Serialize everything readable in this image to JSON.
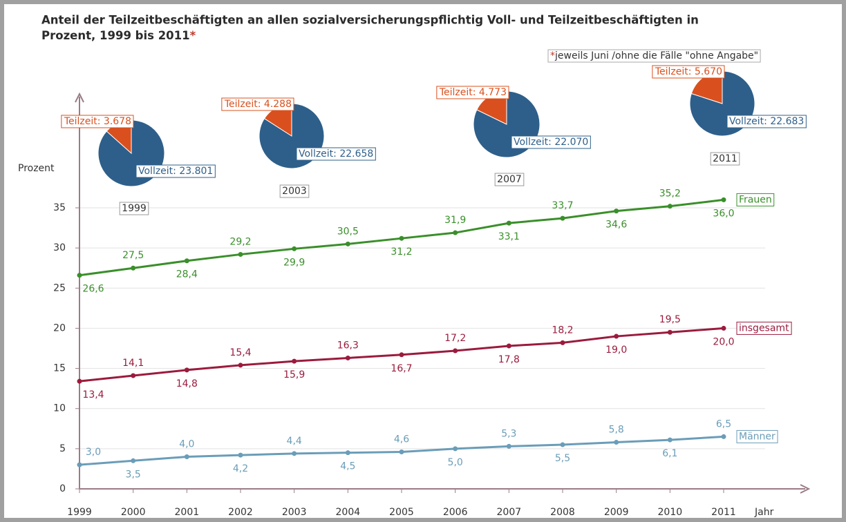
{
  "chart_data": [
    {
      "type": "line",
      "title": [
        "Anteil der Teilzeitbeschäftigten an allen sozialversicherungspflichtig Voll- und  Teilzeitbeschäftigten in",
        "Prozent, 1999 bis 2011"
      ],
      "footnote_marker": "*",
      "footnote": "jeweils Juni /ohne die Fälle \"ohne Angabe\"",
      "ylabel": "Prozent",
      "xlabel": "Jahr",
      "x": [
        1999,
        2000,
        2001,
        2002,
        2003,
        2004,
        2005,
        2006,
        2007,
        2008,
        2009,
        2010,
        2011
      ],
      "xlim": [
        1999,
        2011
      ],
      "xticks": [
        1999,
        2000,
        2001,
        2002,
        2003,
        2004,
        2005,
        2006,
        2007,
        2008,
        2009,
        2010,
        2011
      ],
      "ylim": [
        0,
        35
      ],
      "yticks": [
        0,
        5,
        10,
        15,
        20,
        25,
        30,
        35
      ],
      "grid": true,
      "series": [
        {
          "name": "Frauen",
          "color": "#3a8f2a",
          "values": [
            26.6,
            27.5,
            28.4,
            29.2,
            29.9,
            30.5,
            31.2,
            31.9,
            33.1,
            33.7,
            34.6,
            35.2,
            36.0
          ],
          "value_labels": [
            "26,6",
            "27,5",
            "28,4",
            "29,2",
            "29,9",
            "30,5",
            "31,2",
            "31,9",
            "33,1",
            "33,7",
            "34,6",
            "35,2",
            "36,0"
          ]
        },
        {
          "name": "insgesamt",
          "color": "#9b1b3d",
          "values": [
            13.4,
            14.1,
            14.8,
            15.4,
            15.9,
            16.3,
            16.7,
            17.2,
            17.8,
            18.2,
            19.0,
            19.5,
            20.0
          ],
          "value_labels": [
            "13,4",
            "14,1",
            "14,8",
            "15,4",
            "15,9",
            "16,3",
            "16,7",
            "17,2",
            "17,8",
            "18,2",
            "19,0",
            "19,5",
            "20,0"
          ]
        },
        {
          "name": "Männer",
          "color": "#6a9db8",
          "values": [
            3.0,
            3.5,
            4.0,
            4.2,
            4.4,
            4.5,
            4.6,
            5.0,
            5.3,
            5.5,
            5.8,
            6.1,
            6.5
          ],
          "value_labels": [
            "3,0",
            "3,5",
            "4,0",
            "4,2",
            "4,4",
            "4,5",
            "4,6",
            "5,0",
            "5,3",
            "5,5",
            "5,8",
            "6,1",
            "6,5"
          ]
        }
      ]
    },
    {
      "type": "pie",
      "title": "1999",
      "values": [
        3678,
        23801
      ],
      "value_labels": [
        "Teilzeit: 3.678",
        "Vollzeit: 23.801"
      ],
      "colors": [
        "#d9501e",
        "#2e5f8a"
      ]
    },
    {
      "type": "pie",
      "title": "2003",
      "values": [
        4288,
        22658
      ],
      "value_labels": [
        "Teilzeit: 4.288",
        "Vollzeit: 22.658"
      ],
      "colors": [
        "#d9501e",
        "#2e5f8a"
      ]
    },
    {
      "type": "pie",
      "title": "2007",
      "values": [
        4773,
        22070
      ],
      "value_labels": [
        "Teilzeit: 4.773",
        "Vollzeit: 22.070"
      ],
      "colors": [
        "#d9501e",
        "#2e5f8a"
      ]
    },
    {
      "type": "pie",
      "title": "2011",
      "values": [
        5670,
        22683
      ],
      "value_labels": [
        "Teilzeit: 5.670",
        "Vollzeit: 22.683"
      ],
      "colors": [
        "#d9501e",
        "#2e5f8a"
      ]
    }
  ]
}
